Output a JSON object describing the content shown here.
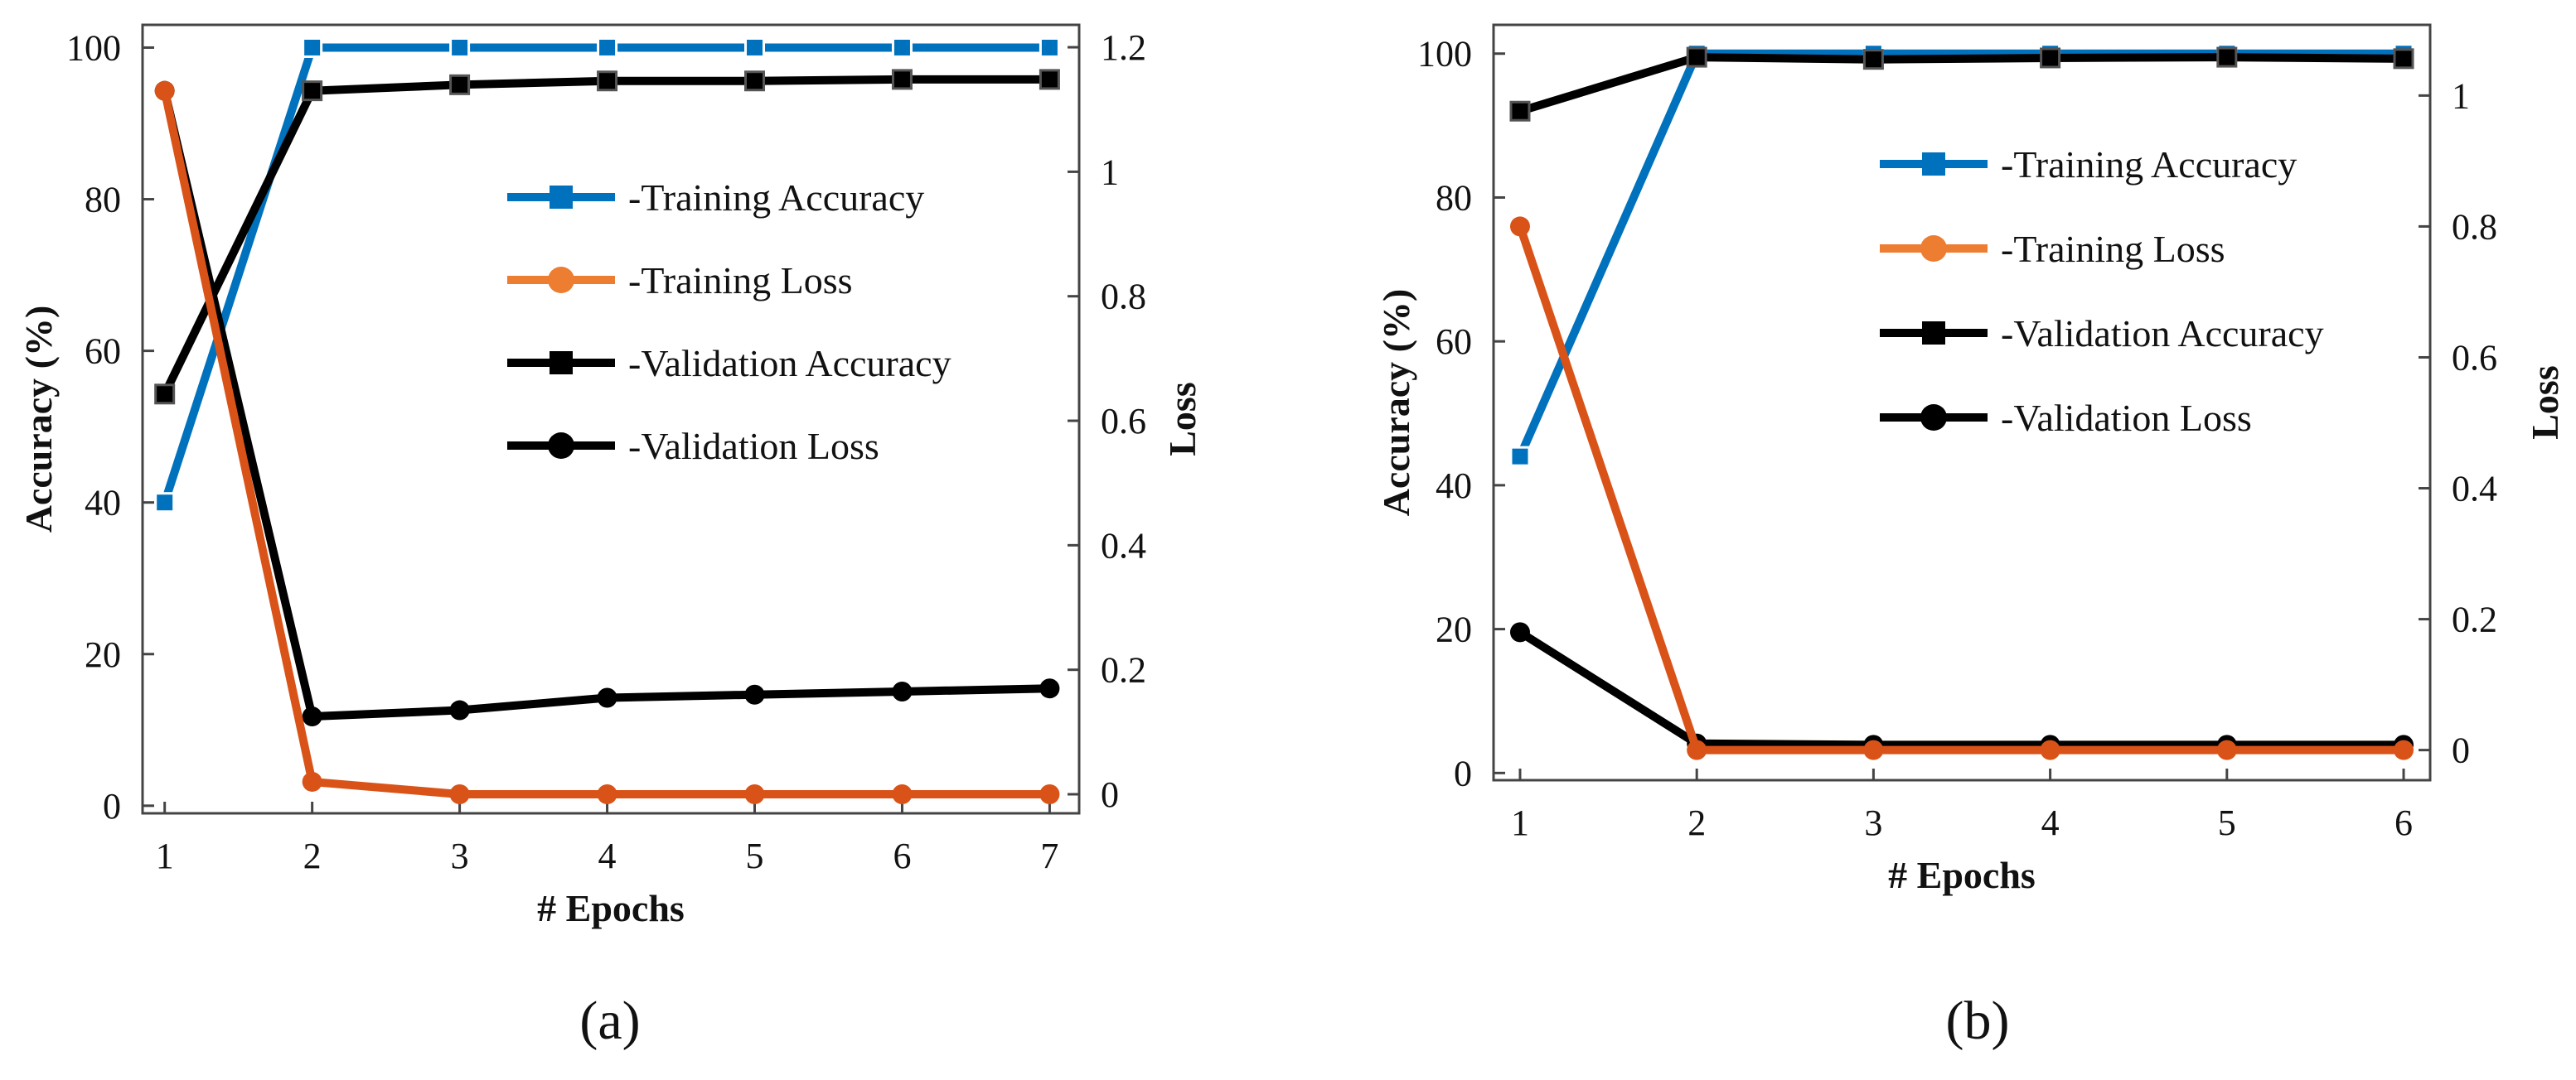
{
  "colors": {
    "training_accuracy": "#0072BD",
    "training_loss": "#D95319",
    "training_loss_legend": "#ED7D31",
    "validation": "#000000",
    "axis": "#444444"
  },
  "chart_data": [
    {
      "type": "line",
      "panel_label": "(a)",
      "xlabel": "# Epochs",
      "ylabel": "Accuracy (%)",
      "ylabel_right": "Loss",
      "x": [
        1,
        2,
        3,
        4,
        5,
        6,
        7
      ],
      "xlim": [
        0.85,
        7.2
      ],
      "ylim": [
        -1,
        103
      ],
      "ylim_right": [
        -0.0306,
        1.236
      ],
      "yticks": [
        "0",
        "20",
        "40",
        "60",
        "80",
        "100"
      ],
      "yticks_right": [
        "0",
        "0.2",
        "0.4",
        "0.6",
        "0.8",
        "1",
        "1.2"
      ],
      "legend_position": "upper-middle",
      "series": [
        {
          "name": "-Training Accuracy",
          "axis": "left",
          "marker": "square",
          "values": [
            40,
            100,
            100,
            100,
            100,
            100,
            100
          ]
        },
        {
          "name": "-Training Loss",
          "axis": "right",
          "marker": "circle",
          "values": [
            1.13,
            0.02,
            0.0,
            0.0,
            0.0,
            0.0,
            0.0
          ]
        },
        {
          "name": "-Validation Accuracy",
          "axis": "left",
          "marker": "square",
          "values": [
            54.3,
            94.3,
            95.1,
            95.6,
            95.6,
            95.8,
            95.8
          ]
        },
        {
          "name": "-Validation Loss",
          "axis": "right",
          "marker": "circle",
          "values": [
            1.13,
            0.125,
            0.135,
            0.155,
            0.16,
            0.165,
            0.17
          ]
        }
      ]
    },
    {
      "type": "line",
      "panel_label": "(b)",
      "xlabel": "# Epochs",
      "ylabel": "Accuracy (%)",
      "ylabel_right": "Loss",
      "x": [
        1,
        2,
        3,
        4,
        5,
        6
      ],
      "xlim": [
        0.85,
        6.15
      ],
      "ylim": [
        -1,
        104
      ],
      "ylim_right": [
        -0.046,
        1.108
      ],
      "yticks": [
        "0",
        "20",
        "40",
        "60",
        "80",
        "100"
      ],
      "yticks_right": [
        "0",
        "0.2",
        "0.4",
        "0.6",
        "0.8",
        "1"
      ],
      "legend_position": "upper-middle",
      "series": [
        {
          "name": "-Training Accuracy",
          "axis": "left",
          "marker": "square",
          "values": [
            44,
            100,
            100,
            100,
            100,
            100
          ]
        },
        {
          "name": "-Training Loss",
          "axis": "right",
          "marker": "circle",
          "values": [
            0.8,
            0.0,
            0.0,
            0.0,
            0.0,
            0.0
          ]
        },
        {
          "name": "-Validation Accuracy",
          "axis": "left",
          "marker": "square",
          "values": [
            92,
            99.5,
            99.2,
            99.4,
            99.5,
            99.3
          ]
        },
        {
          "name": "-Validation Loss",
          "axis": "right",
          "marker": "circle",
          "values": [
            0.18,
            0.01,
            0.008,
            0.008,
            0.008,
            0.008
          ]
        }
      ]
    }
  ]
}
